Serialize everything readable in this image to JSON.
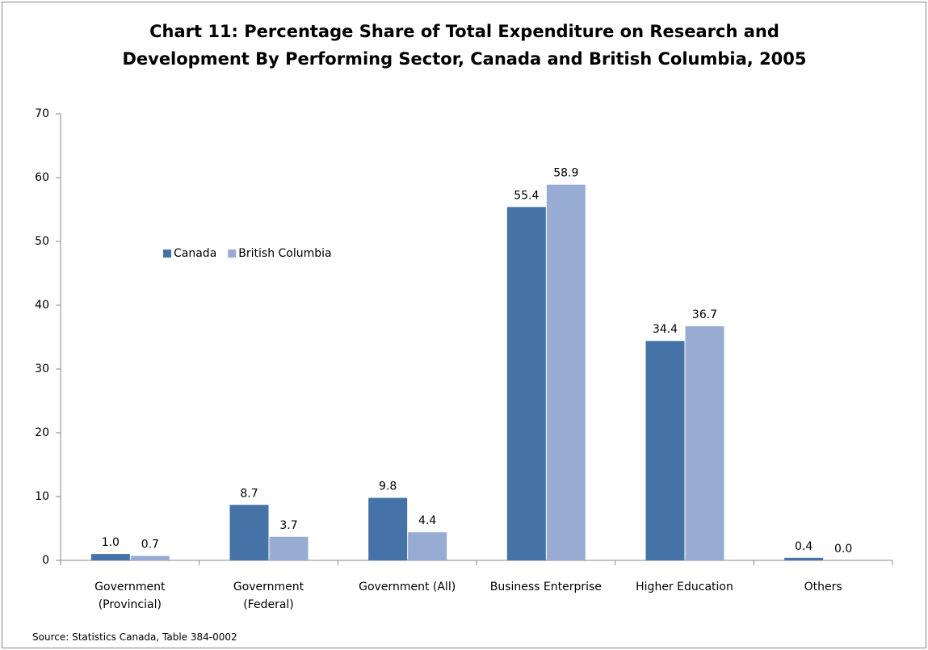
{
  "chart_data": {
    "type": "bar",
    "title": "Chart 11: Percentage Share of Total Expenditure on Research and Development By Performing Sector, Canada and British Columbia, 2005",
    "categories": [
      "Government (Provincial)",
      "Government (Federal)",
      "Government (All)",
      "Business Enterprise",
      "Higher Education",
      "Others"
    ],
    "series": [
      {
        "name": "Canada",
        "color": "#4573a7",
        "values": [
          1.0,
          8.7,
          9.8,
          55.4,
          34.4,
          0.4
        ],
        "value_labels": [
          "1.0",
          "8.7",
          "9.8",
          "55.4",
          "34.4",
          "0.4"
        ]
      },
      {
        "name": "British Columbia",
        "color": "#98acd3",
        "values": [
          0.7,
          3.7,
          4.4,
          58.9,
          36.7,
          0.0
        ],
        "value_labels": [
          "0.7",
          "3.7",
          "4.4",
          "58.9",
          "36.7",
          "0.0"
        ]
      }
    ],
    "ylim": [
      0,
      70
    ],
    "yticks": [
      0,
      10,
      20,
      30,
      40,
      50,
      60,
      70
    ],
    "grid": false,
    "source": "Source: Statistics Canada, Table 384-0002"
  }
}
